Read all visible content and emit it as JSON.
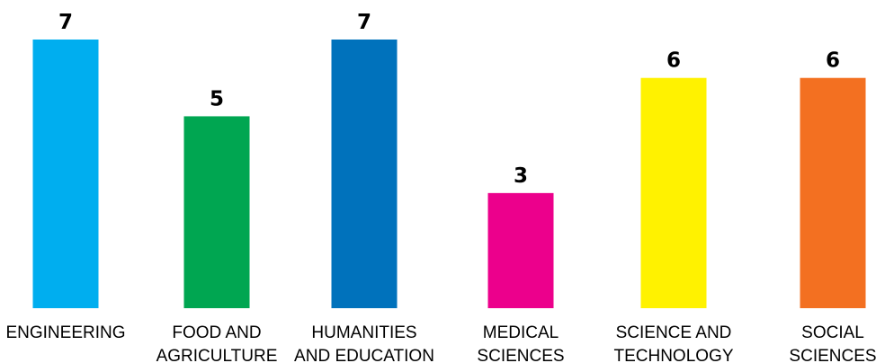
{
  "chart_data": {
    "type": "bar",
    "categories": [
      [
        "ENGINEERING"
      ],
      [
        "FOOD AND",
        "AGRICULTURE"
      ],
      [
        "HUMANITIES",
        "AND EDUCATION"
      ],
      [
        "MEDICAL",
        "SCIENCES"
      ],
      [
        "SCIENCE AND",
        "TECHNOLOGY"
      ],
      [
        "SOCIAL",
        "SCIENCES"
      ]
    ],
    "values": [
      7,
      5,
      7,
      3,
      6,
      6
    ],
    "colors": [
      "#00AEEF",
      "#00A651",
      "#0072BC",
      "#EC008C",
      "#FFF200",
      "#F37021"
    ],
    "ylim": [
      0,
      7
    ],
    "grid": false,
    "legend": "none"
  }
}
